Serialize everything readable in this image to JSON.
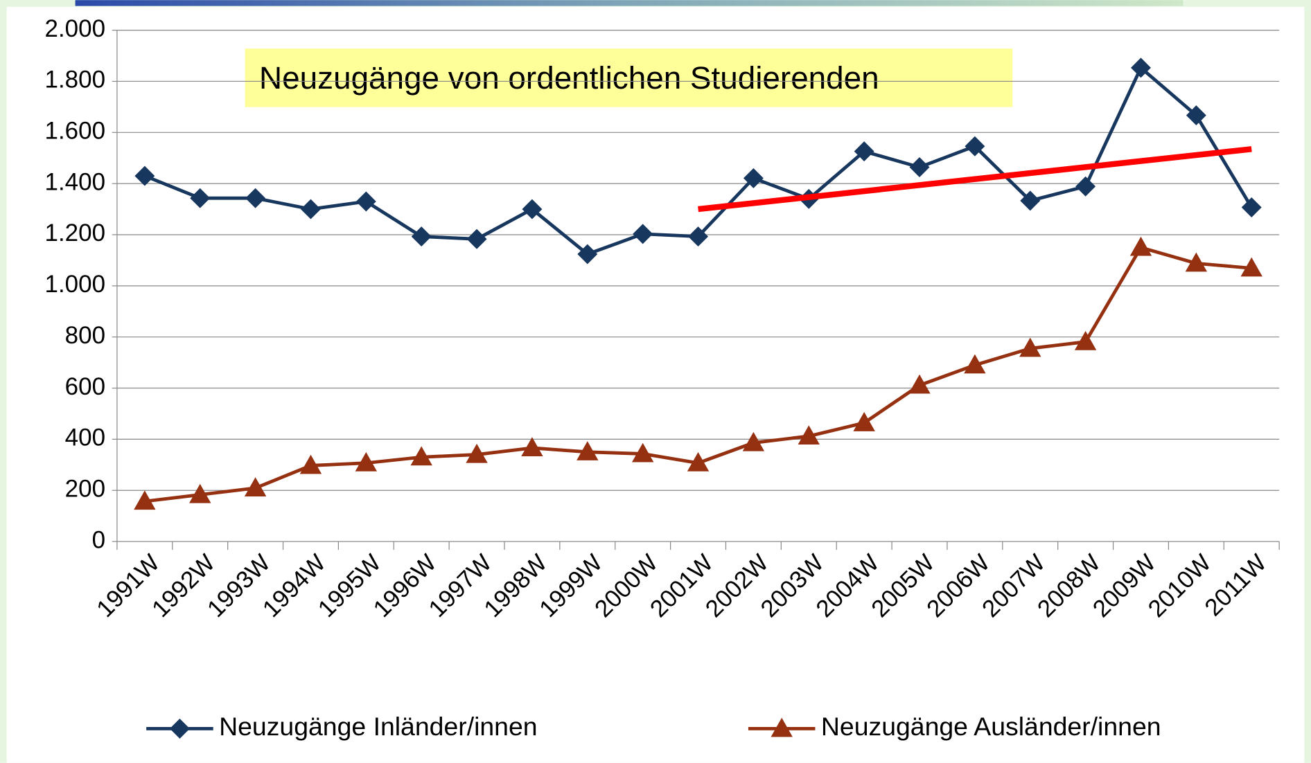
{
  "chart_data": {
    "type": "line",
    "title": "Neuzugänge von ordentlichen Studierenden",
    "categories": [
      "1991W",
      "1992W",
      "1993W",
      "1994W",
      "1995W",
      "1996W",
      "1997W",
      "1998W",
      "1999W",
      "2000W",
      "2001W",
      "2002W",
      "2003W",
      "2004W",
      "2005W",
      "2006W",
      "2007W",
      "2008W",
      "2009W",
      "2010W",
      "2011W"
    ],
    "series": [
      {
        "name": "Neuzugänge Inländer/innen",
        "color": "#17375e",
        "marker": "diamond",
        "values": [
          1430,
          1343,
          1343,
          1300,
          1330,
          1193,
          1183,
          1300,
          1124,
          1203,
          1193,
          1421,
          1340,
          1526,
          1464,
          1546,
          1333,
          1389,
          1853,
          1667,
          1307
        ]
      },
      {
        "name": "Neuzugänge Ausländer/innen",
        "color": "#953010",
        "marker": "triangle",
        "values": [
          157,
          183,
          209,
          297,
          307,
          330,
          340,
          366,
          350,
          343,
          307,
          386,
          412,
          464,
          611,
          690,
          755,
          781,
          1150,
          1088,
          1069
        ]
      }
    ],
    "trendline": {
      "x": [
        "2001W",
        "2011W"
      ],
      "values": [
        1300,
        1535
      ],
      "color": "#ff0000"
    },
    "ylim": [
      0,
      2000
    ],
    "yticks": [
      0,
      200,
      400,
      600,
      800,
      {
        "value": 1000,
        "label": "1.000"
      },
      {
        "value": 1200,
        "label": "1.200"
      },
      {
        "value": 1400,
        "label": "1.400"
      },
      {
        "value": 1600,
        "label": "1.600"
      },
      {
        "value": 1800,
        "label": "1.800"
      },
      {
        "value": 2000,
        "label": "2.000"
      }
    ],
    "grid": true
  }
}
